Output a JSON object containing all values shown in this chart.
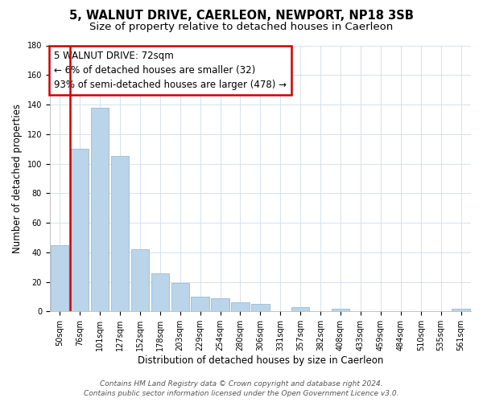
{
  "title": "5, WALNUT DRIVE, CAERLEON, NEWPORT, NP18 3SB",
  "subtitle": "Size of property relative to detached houses in Caerleon",
  "xlabel": "Distribution of detached houses by size in Caerleon",
  "ylabel": "Number of detached properties",
  "bar_labels": [
    "50sqm",
    "76sqm",
    "101sqm",
    "127sqm",
    "152sqm",
    "178sqm",
    "203sqm",
    "229sqm",
    "254sqm",
    "280sqm",
    "306sqm",
    "331sqm",
    "357sqm",
    "382sqm",
    "408sqm",
    "433sqm",
    "459sqm",
    "484sqm",
    "510sqm",
    "535sqm",
    "561sqm"
  ],
  "bar_values": [
    45,
    110,
    138,
    105,
    42,
    26,
    19,
    10,
    9,
    6,
    5,
    0,
    3,
    0,
    2,
    0,
    0,
    0,
    0,
    0,
    2
  ],
  "bar_color": "#bad4ea",
  "bar_edge_color": "#9bbad6",
  "annotation_title": "5 WALNUT DRIVE: 72sqm",
  "annotation_line1": "← 6% of detached houses are smaller (32)",
  "annotation_line2": "93% of semi-detached houses are larger (478) →",
  "annotation_box_color": "#ffffff",
  "annotation_border_color": "#cc0000",
  "red_line_color": "#cc0000",
  "ylim": [
    0,
    180
  ],
  "yticks": [
    0,
    20,
    40,
    60,
    80,
    100,
    120,
    140,
    160,
    180
  ],
  "footer1": "Contains HM Land Registry data © Crown copyright and database right 2024.",
  "footer2": "Contains public sector information licensed under the Open Government Licence v3.0.",
  "bg_color": "#ffffff",
  "grid_color": "#d0dcea",
  "title_fontsize": 10.5,
  "subtitle_fontsize": 9.5,
  "axis_label_fontsize": 8.5,
  "tick_fontsize": 7,
  "annotation_fontsize": 8.5,
  "footer_fontsize": 6.5
}
